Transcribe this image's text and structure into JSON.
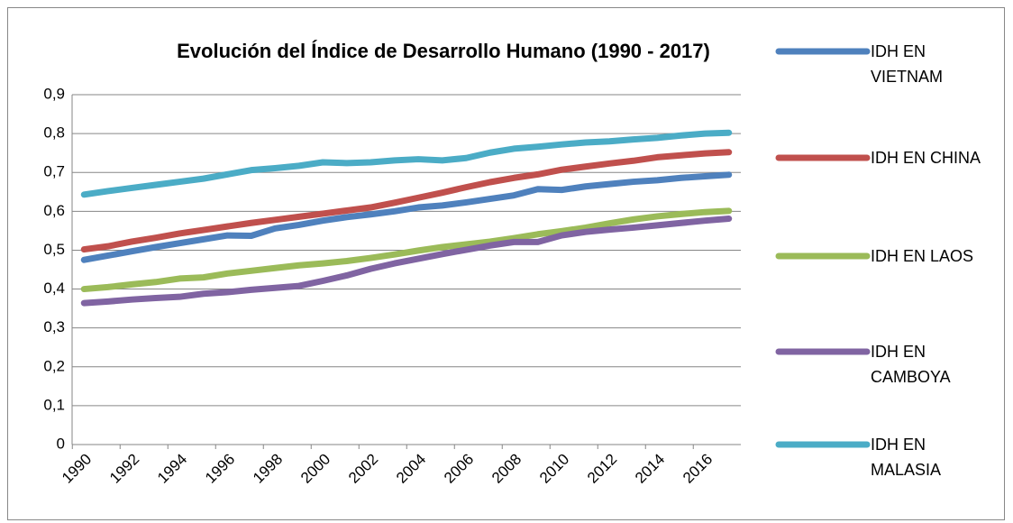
{
  "chart_data": {
    "type": "line",
    "title": "Evolución del Índice de Desarrollo Humano (1990 - 2017)",
    "x": [
      1990,
      1991,
      1992,
      1993,
      1994,
      1995,
      1996,
      1997,
      1998,
      1999,
      2000,
      2001,
      2002,
      2003,
      2004,
      2005,
      2006,
      2007,
      2008,
      2009,
      2010,
      2011,
      2012,
      2013,
      2014,
      2015,
      2016,
      2017
    ],
    "xlim": [
      1989.5,
      2017.5
    ],
    "xticks": [
      1990,
      1992,
      1994,
      1996,
      1998,
      2000,
      2002,
      2004,
      2006,
      2008,
      2010,
      2012,
      2014,
      2016
    ],
    "ylim": [
      0,
      0.9
    ],
    "yticks": [
      0,
      {
        "value": 0.1,
        "label": "0,1"
      },
      {
        "value": 0.2,
        "label": "0,2"
      },
      {
        "value": 0.3,
        "label": "0,3"
      },
      {
        "value": 0.4,
        "label": "0,4"
      },
      {
        "value": 0.5,
        "label": "0,5"
      },
      {
        "value": 0.6,
        "label": "0,6"
      },
      {
        "value": 0.7,
        "label": "0,7"
      },
      {
        "value": 0.8,
        "label": "0,8"
      },
      {
        "value": 0.9,
        "label": "0,9"
      }
    ],
    "grid": true,
    "legend": "right",
    "series": [
      {
        "name": "IDH EN VIETNAM",
        "color": "#4f81bd",
        "values": [
          0.475,
          0.486,
          0.497,
          0.508,
          0.518,
          0.528,
          0.538,
          0.537,
          0.556,
          0.565,
          0.576,
          0.585,
          0.592,
          0.6,
          0.61,
          0.615,
          0.623,
          0.632,
          0.641,
          0.657,
          0.655,
          0.664,
          0.67,
          0.676,
          0.68,
          0.686,
          0.69,
          0.694
        ]
      },
      {
        "name": "IDH EN CHINA",
        "color": "#c0504d",
        "values": [
          0.502,
          0.51,
          0.522,
          0.532,
          0.543,
          0.552,
          0.561,
          0.57,
          0.578,
          0.586,
          0.594,
          0.602,
          0.61,
          0.622,
          0.635,
          0.648,
          0.662,
          0.675,
          0.686,
          0.695,
          0.707,
          0.715,
          0.723,
          0.73,
          0.739,
          0.744,
          0.749,
          0.752
        ]
      },
      {
        "name": "IDH EN LAOS",
        "color": "#9bbb59",
        "values": [
          0.4,
          0.405,
          0.412,
          0.418,
          0.427,
          0.43,
          0.44,
          0.447,
          0.454,
          0.461,
          0.466,
          0.472,
          0.48,
          0.489,
          0.499,
          0.508,
          0.515,
          0.522,
          0.531,
          0.541,
          0.549,
          0.558,
          0.569,
          0.579,
          0.587,
          0.593,
          0.598,
          0.601
        ]
      },
      {
        "name": "IDH EN CAMBOYA",
        "color": "#8064a2",
        "values": [
          0.364,
          0.368,
          0.373,
          0.377,
          0.38,
          0.388,
          0.392,
          0.398,
          0.403,
          0.408,
          0.421,
          0.435,
          0.452,
          0.466,
          0.478,
          0.49,
          0.501,
          0.512,
          0.521,
          0.521,
          0.538,
          0.547,
          0.553,
          0.558,
          0.564,
          0.57,
          0.576,
          0.581
        ]
      },
      {
        "name": "IDH EN MALASIA",
        "color": "#4bacc6",
        "values": [
          0.643,
          0.652,
          0.66,
          0.668,
          0.676,
          0.684,
          0.695,
          0.706,
          0.711,
          0.717,
          0.726,
          0.724,
          0.726,
          0.731,
          0.734,
          0.731,
          0.737,
          0.751,
          0.761,
          0.766,
          0.772,
          0.777,
          0.78,
          0.785,
          0.789,
          0.795,
          0.8,
          0.802
        ]
      }
    ]
  }
}
